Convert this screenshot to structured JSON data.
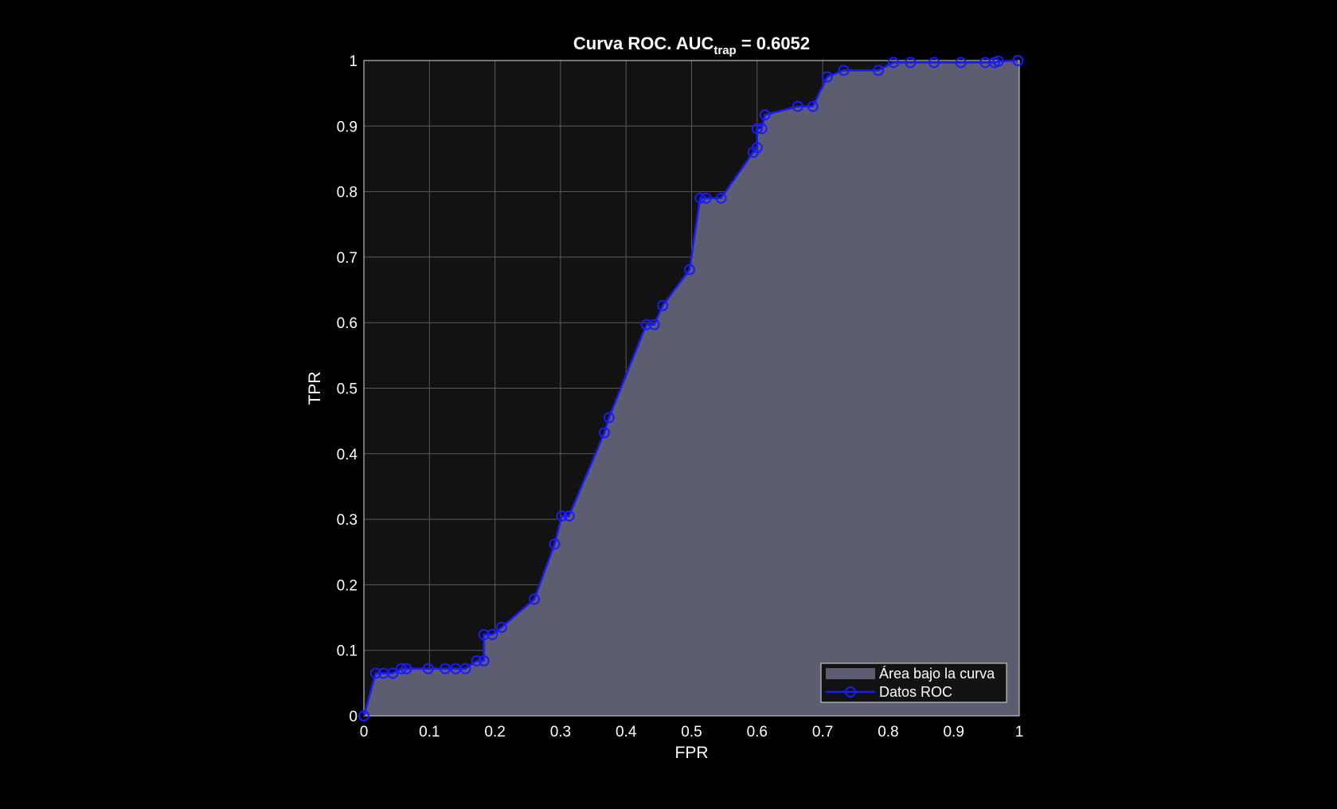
{
  "chart_data": {
    "type": "area",
    "title": "Curva  ROC.  AUC",
    "title_subscript": "trap",
    "title_suffix": "  =  0.6052",
    "xlabel": "FPR",
    "ylabel": "TPR",
    "xlim": [
      0,
      1
    ],
    "ylim": [
      0,
      1
    ],
    "xticks": [
      "0",
      "0.1",
      "0.2",
      "0.3",
      "0.4",
      "0.5",
      "0.6",
      "0.7",
      "0.8",
      "0.9",
      "1"
    ],
    "yticks": [
      "0",
      "0.1",
      "0.2",
      "0.3",
      "0.4",
      "0.5",
      "0.6",
      "0.7",
      "0.8",
      "0.9",
      "1"
    ],
    "grid": true,
    "legend_position": "bottom-right",
    "legend": [
      "Área bajo la curva",
      "Datos ROC"
    ],
    "series": [
      {
        "name": "Datos ROC",
        "x": [
          0,
          0.018,
          0.03,
          0.044,
          0.057,
          0.065,
          0.098,
          0.124,
          0.14,
          0.155,
          0.172,
          0.183,
          0.183,
          0.196,
          0.21,
          0.26,
          0.291,
          0.302,
          0.313,
          0.367,
          0.374,
          0.431,
          0.443,
          0.456,
          0.497,
          0.513,
          0.522,
          0.545,
          0.594,
          0.6,
          0.6,
          0.607,
          0.612,
          0.662,
          0.685,
          0.707,
          0.732,
          0.785,
          0.808,
          0.834,
          0.87,
          0.911,
          0.948,
          0.962,
          0.968,
          0.998
        ],
        "y": [
          0,
          0.065,
          0.065,
          0.065,
          0.072,
          0.072,
          0.072,
          0.072,
          0.072,
          0.072,
          0.084,
          0.084,
          0.124,
          0.124,
          0.135,
          0.178,
          0.262,
          0.305,
          0.305,
          0.432,
          0.455,
          0.597,
          0.597,
          0.626,
          0.681,
          0.79,
          0.79,
          0.79,
          0.86,
          0.867,
          0.896,
          0.896,
          0.917,
          0.93,
          0.93,
          0.975,
          0.985,
          0.985,
          0.997,
          0.997,
          0.997,
          0.997,
          0.997,
          0.997,
          0.999,
          1.0
        ]
      }
    ]
  },
  "colors": {
    "background": "#000000",
    "axes_background": "#121212",
    "grid": "#5a5a5a",
    "area_fill": "#5d5d72",
    "line": "#1a1aff",
    "text": "#ffffff",
    "legend_background": "#121212"
  }
}
